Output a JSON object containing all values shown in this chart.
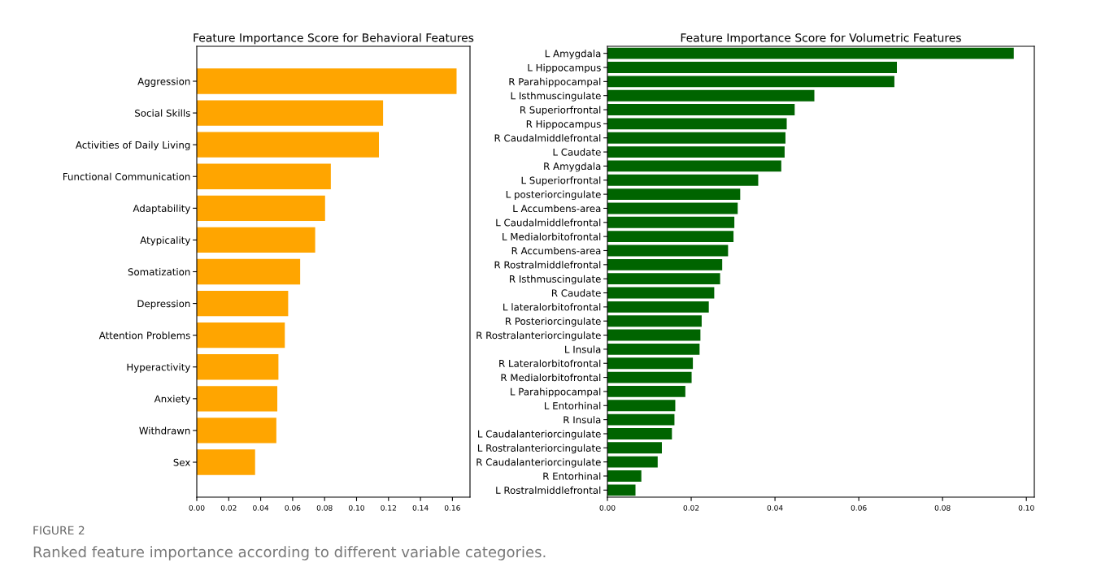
{
  "chart_data": [
    {
      "type": "bar",
      "orientation": "horizontal",
      "title": "Feature Importance Score for Behavioral Features",
      "categories": [
        "Aggression",
        "Social Skills",
        "Activities of Daily Living",
        "Functional Communication",
        "Adaptability",
        "Atypicality",
        "Somatization",
        "Depression",
        "Attention Problems",
        "Hyperactivity",
        "Anxiety",
        "Withdrawn",
        "Sex"
      ],
      "values": [
        0.1626,
        0.1166,
        0.114,
        0.0839,
        0.0803,
        0.0741,
        0.0647,
        0.0572,
        0.0551,
        0.0511,
        0.0504,
        0.0498,
        0.0365
      ],
      "color": "#ffa500",
      "xlim": [
        0,
        0.171
      ],
      "xticks": [
        {
          "value": 0,
          "label": "0.00"
        },
        {
          "value": 0.02,
          "label": "0.02"
        },
        {
          "value": 0.04,
          "label": "0.04"
        },
        {
          "value": 0.06,
          "label": "0.06"
        },
        {
          "value": 0.08,
          "label": "0.08"
        },
        {
          "value": 0.1,
          "label": "0.10"
        },
        {
          "value": 0.12,
          "label": "0.12"
        },
        {
          "value": 0.14,
          "label": "0.14"
        },
        {
          "value": 0.16,
          "label": "0.16"
        }
      ],
      "grid": false,
      "legend": false,
      "annotations": [
        "FIGURE 2",
        "Ranked feature importance according to different variable categories."
      ]
    },
    {
      "type": "bar",
      "orientation": "horizontal",
      "title": "Feature Importance Score for Volumetric Features",
      "categories": [
        "L Amygdala",
        "L Hippocampus",
        "R Parahippocampal",
        "L Isthmuscingulate",
        "R Superiorfrontal",
        "R Hippocampus",
        "R Caudalmiddlefrontal",
        "L Caudate",
        "R Amygdala",
        "L Superiorfrontal",
        "L posteriorcingulate",
        "L Accumbens-area",
        "L Caudalmiddlefrontal",
        "L Medialorbitofrontal",
        "R Accumbens-area",
        "R Rostralmiddlefrontal",
        "R Isthmuscingulate",
        "R Caudate",
        "L lateralorbitofrontal",
        "R Posteriorcingulate",
        "R Rostralanteriorcingulate",
        "L Insula",
        "R Lateralorbitofrontal",
        "R Medialorbitofrontal",
        "L Parahippocampal",
        "L Entorhinal",
        "R Insula",
        "L Caudalanteriorcingulate",
        "L Rostralanteriorcingulate",
        "R Caudalanteriorcingulate",
        "R Entorhinal",
        "L Rostralmiddlefrontal"
      ],
      "values": [
        0.097,
        0.0691,
        0.0685,
        0.0494,
        0.0447,
        0.0428,
        0.0425,
        0.0423,
        0.0415,
        0.036,
        0.0317,
        0.0311,
        0.0303,
        0.0301,
        0.0288,
        0.0274,
        0.0269,
        0.0255,
        0.0242,
        0.0225,
        0.0222,
        0.022,
        0.0204,
        0.0201,
        0.0186,
        0.0162,
        0.016,
        0.0154,
        0.013,
        0.012,
        0.0081,
        0.0067
      ],
      "color": "#006400",
      "xlim": [
        0,
        0.1019
      ],
      "xticks": [
        {
          "value": 0,
          "label": "0.00"
        },
        {
          "value": 0.02,
          "label": "0.02"
        },
        {
          "value": 0.04,
          "label": "0.04"
        },
        {
          "value": 0.06,
          "label": "0.06"
        },
        {
          "value": 0.08,
          "label": "0.08"
        },
        {
          "value": 0.1,
          "label": "0.10"
        }
      ],
      "grid": false,
      "legend": false
    }
  ]
}
